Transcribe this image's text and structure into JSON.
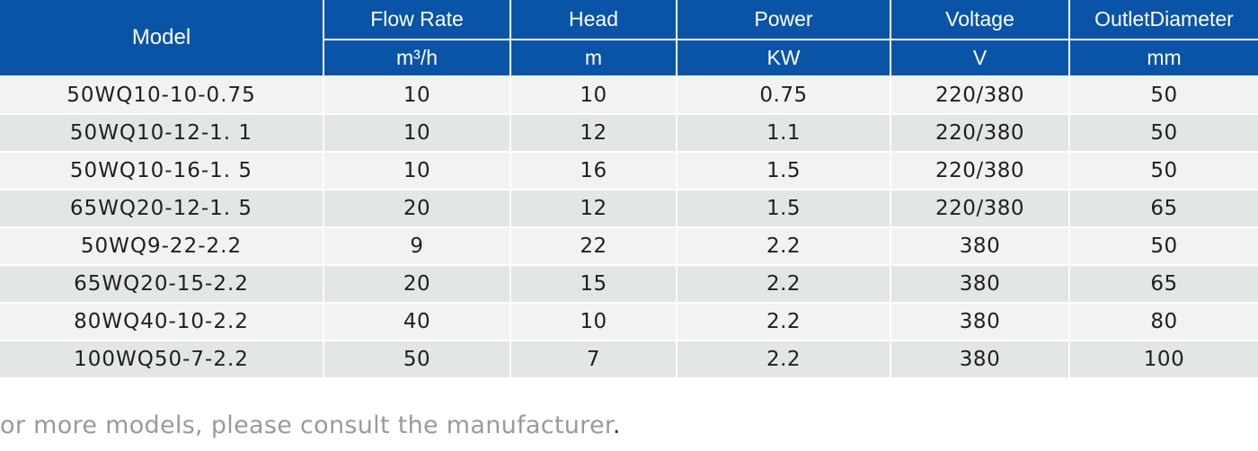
{
  "table": {
    "headers": {
      "model": "Model",
      "columns": [
        {
          "name": "Flow Rate",
          "unit": "m³/h"
        },
        {
          "name": "Head",
          "unit": "m"
        },
        {
          "name": "Power",
          "unit": "KW"
        },
        {
          "name": "Voltage",
          "unit": "V"
        },
        {
          "name": "OutletDiameter",
          "unit": "mm"
        }
      ]
    },
    "rows": [
      [
        "50WQ10-10-0.75",
        "10",
        "10",
        "0.75",
        "220/380",
        "50"
      ],
      [
        "50WQ10-12-1. 1",
        "10",
        "12",
        "1.1",
        "220/380",
        "50"
      ],
      [
        "50WQ10-16-1. 5",
        "10",
        "16",
        "1.5",
        "220/380",
        "50"
      ],
      [
        "65WQ20-12-1. 5",
        "20",
        "12",
        "1.5",
        "220/380",
        "65"
      ],
      [
        "50WQ9-22-2.2",
        "9",
        "22",
        "2.2",
        "380",
        "50"
      ],
      [
        "65WQ20-15-2.2",
        "20",
        "15",
        "2.2",
        "380",
        "65"
      ],
      [
        "80WQ40-10-2.2",
        "40",
        "10",
        "2.2",
        "380",
        "80"
      ],
      [
        "100WQ50-7-2.2",
        "50",
        "7",
        "2.2",
        "380",
        "100"
      ]
    ]
  },
  "footnote": {
    "text": "or more models, please consult the manufacturer",
    "end_mark": "."
  },
  "colors": {
    "header_bg": "#0a54a8",
    "row_light": "#f1f3f3",
    "row_dark": "#e2e6e6",
    "footnote": "#9a9a9a"
  }
}
